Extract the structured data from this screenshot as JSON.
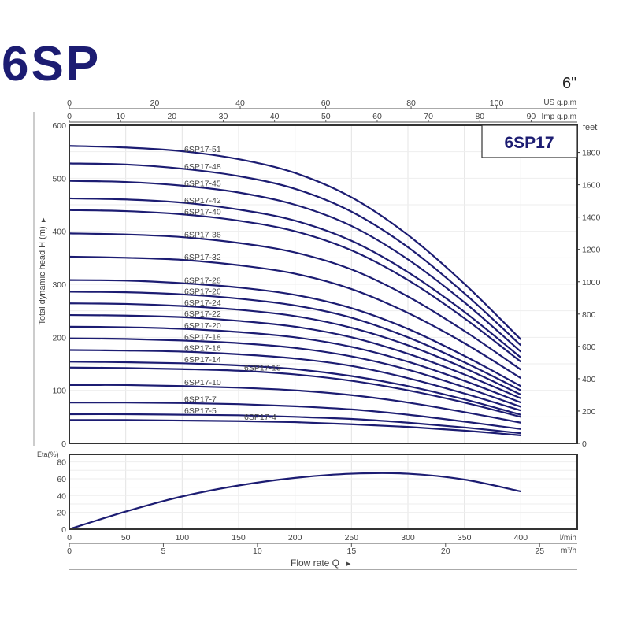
{
  "header": {
    "title": "6SP",
    "size": "6\""
  },
  "chart_data": [
    {
      "type": "line",
      "title": "6SP17",
      "ylabel": "Total dynamic head H (m)",
      "ylabel_right": "feet",
      "xlim": [
        0,
        450
      ],
      "ylim": [
        0,
        600
      ],
      "grid": true,
      "y_ticks": [
        0,
        100,
        200,
        300,
        400,
        500,
        600
      ],
      "y_ticks_right": [
        0,
        200,
        400,
        600,
        800,
        1000,
        1200,
        1400,
        1600,
        1800
      ],
      "top_axes": [
        {
          "label": "US g.p.m",
          "ticks": [
            0,
            20,
            40,
            60,
            80,
            100
          ]
        },
        {
          "label": "Imp g.p.m",
          "ticks": [
            0,
            10,
            20,
            30,
            40,
            50,
            60,
            70,
            80,
            90
          ]
        }
      ],
      "x": [
        0,
        50,
        100,
        150,
        200,
        250,
        300,
        350,
        400
      ],
      "series": [
        {
          "name": "6SP17-51",
          "values": [
            561,
            558,
            551,
            536,
            510,
            464,
            393,
            301,
            196
          ]
        },
        {
          "name": "6SP17-48",
          "values": [
            528,
            526,
            518,
            504,
            480,
            437,
            370,
            283,
            185
          ]
        },
        {
          "name": "6SP17-45",
          "values": [
            495,
            493,
            486,
            473,
            450,
            410,
            347,
            266,
            173
          ]
        },
        {
          "name": "6SP17-42",
          "values": [
            462,
            460,
            454,
            441,
            420,
            382,
            323,
            248,
            162
          ]
        },
        {
          "name": "6SP17-40",
          "values": [
            440,
            438,
            432,
            420,
            400,
            364,
            308,
            236,
            154
          ]
        },
        {
          "name": "6SP17-36",
          "values": [
            396,
            394,
            389,
            378,
            360,
            328,
            277,
            212,
            139
          ]
        },
        {
          "name": "6SP17-32",
          "values": [
            352,
            350,
            346,
            336,
            320,
            291,
            246,
            189,
            123
          ]
        },
        {
          "name": "6SP17-28",
          "values": [
            308,
            307,
            302,
            294,
            280,
            255,
            216,
            165,
            108
          ]
        },
        {
          "name": "6SP17-26",
          "values": [
            286,
            285,
            281,
            273,
            260,
            237,
            200,
            153,
            100
          ]
        },
        {
          "name": "6SP17-24",
          "values": [
            264,
            263,
            259,
            252,
            240,
            218,
            185,
            142,
            92
          ]
        },
        {
          "name": "6SP17-22",
          "values": [
            242,
            241,
            238,
            231,
            220,
            200,
            169,
            130,
            85
          ]
        },
        {
          "name": "6SP17-20",
          "values": [
            220,
            219,
            216,
            210,
            200,
            182,
            154,
            118,
            77
          ]
        },
        {
          "name": "6SP17-18",
          "values": [
            198,
            197,
            194,
            189,
            180,
            164,
            139,
            106,
            69
          ]
        },
        {
          "name": "6SP17-16",
          "values": [
            176,
            175,
            173,
            168,
            160,
            146,
            123,
            94,
            62
          ]
        },
        {
          "name": "6SP17-14",
          "values": [
            154,
            153,
            151,
            147,
            140,
            127,
            108,
            83,
            54
          ]
        },
        {
          "name": "6SP17-13",
          "values": [
            143,
            142,
            140,
            137,
            130,
            118,
            100,
            77,
            50
          ]
        },
        {
          "name": "6SP17-10",
          "values": [
            110,
            110,
            108,
            105,
            100,
            91,
            77,
            59,
            39
          ]
        },
        {
          "name": "6SP17-7",
          "values": [
            77,
            77,
            76,
            74,
            70,
            64,
            54,
            41,
            27
          ]
        },
        {
          "name": "6SP17-5",
          "values": [
            55,
            55,
            54,
            53,
            50,
            46,
            39,
            30,
            19
          ]
        },
        {
          "name": "6SP17-4",
          "values": [
            44,
            44,
            43,
            42,
            40,
            36,
            31,
            24,
            15
          ]
        }
      ],
      "color": "#1c1c72"
    },
    {
      "type": "line",
      "ylabel": "Eta(%)",
      "xlabel": "Flow rate  Q",
      "xunit": "l/min",
      "xunit2": "m³/h",
      "ylim": [
        0,
        89
      ],
      "xlim": [
        0,
        450
      ],
      "y_ticks": [
        0,
        20,
        40,
        60,
        80
      ],
      "x_ticks": [
        0,
        50,
        100,
        150,
        200,
        250,
        300,
        350,
        400
      ],
      "x_ticks2": [
        0,
        5,
        10,
        15,
        20,
        25
      ],
      "x": [
        0,
        50,
        100,
        150,
        200,
        250,
        300,
        350,
        400
      ],
      "values": [
        0,
        21,
        39,
        52,
        61,
        66,
        66,
        59,
        45
      ],
      "color": "#1c1c72"
    }
  ]
}
